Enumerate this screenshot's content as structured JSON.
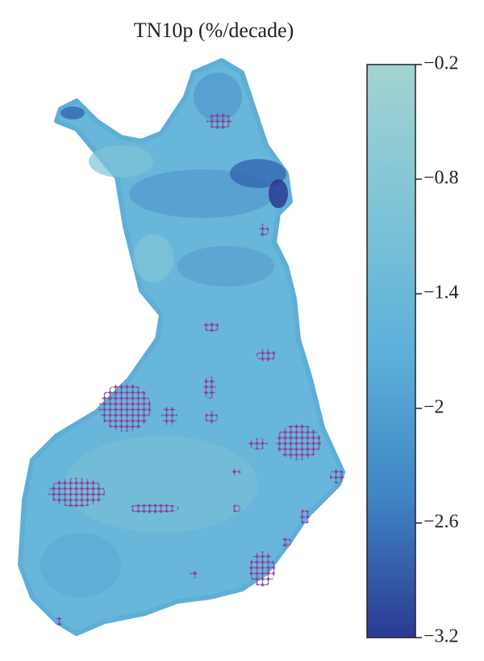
{
  "map": {
    "title": "TN10p (%/decade)",
    "colorbar": {
      "lim": [
        -3.2,
        -0.2
      ],
      "ticks": [
        {
          "value": -0.2,
          "label": "−0.2"
        },
        {
          "value": -0.8,
          "label": "−0.8"
        },
        {
          "value": -1.4,
          "label": "−1.4"
        },
        {
          "value": -2,
          "label": "−2"
        },
        {
          "value": -2.6,
          "label": "−2.6"
        },
        {
          "value": -3.2,
          "label": "−3.2"
        }
      ],
      "colors": [
        "#a3d3d2",
        "#7ec4d6",
        "#5db0db",
        "#3f86c4",
        "#2b3a93"
      ]
    }
  }
}
